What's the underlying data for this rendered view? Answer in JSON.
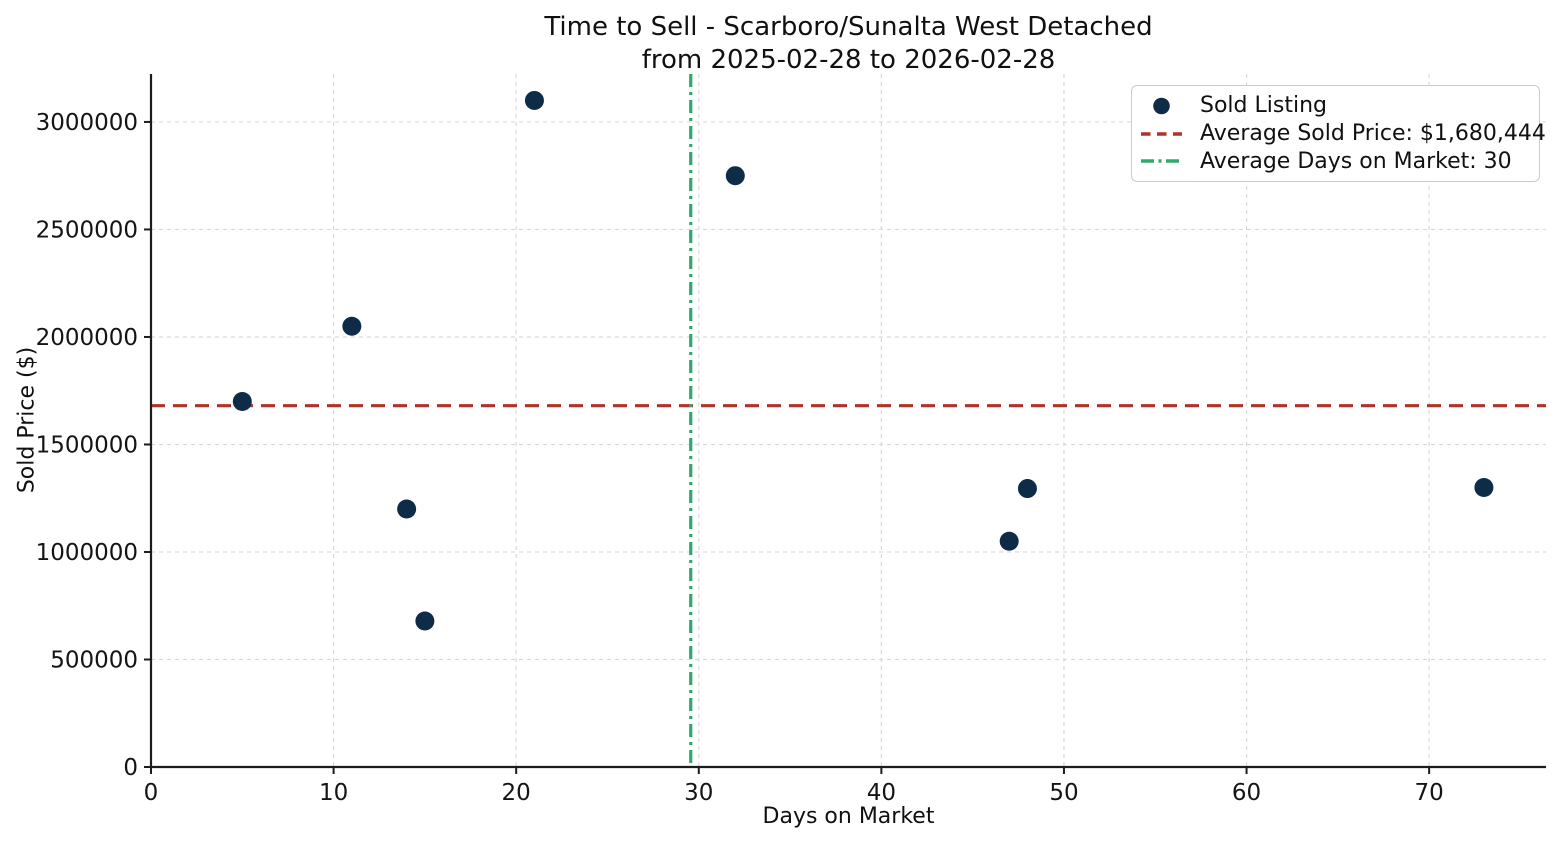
{
  "chart_data": {
    "type": "scatter",
    "title": "Time to Sell - Scarboro/Sunalta West Detached",
    "subtitle": "from 2025-02-28 to 2026-02-28",
    "xlabel": "Days on Market",
    "ylabel": "Sold Price ($)",
    "series": [
      {
        "name": "Sold Listing",
        "points": [
          {
            "days_on_market": 5,
            "sold_price": 1700000
          },
          {
            "days_on_market": 11,
            "sold_price": 2050000
          },
          {
            "days_on_market": 14,
            "sold_price": 1200000
          },
          {
            "days_on_market": 15,
            "sold_price": 679000
          },
          {
            "days_on_market": 21,
            "sold_price": 3100000
          },
          {
            "days_on_market": 32,
            "sold_price": 2750000
          },
          {
            "days_on_market": 47,
            "sold_price": 1050000
          },
          {
            "days_on_market": 48,
            "sold_price": 1295000
          },
          {
            "days_on_market": 73,
            "sold_price": 1300000
          }
        ]
      }
    ],
    "average_sold_price": 1680444,
    "average_days_on_market": 30,
    "average_days_line_x": 29.56,
    "xlim": [
      0,
      76.4
    ],
    "ylim": [
      0,
      3223000
    ],
    "xticks": [
      0,
      10,
      20,
      30,
      40,
      50,
      60,
      70
    ],
    "yticks": [
      0,
      500000,
      1000000,
      1500000,
      2000000,
      2500000,
      3000000
    ],
    "grid": true,
    "legend_position": "upper right",
    "legend": [
      {
        "label": "Sold Listing",
        "marker": "dot",
        "color": "#0e2b48"
      },
      {
        "label": "Average Sold Price: $1,680,444",
        "marker": "dashed",
        "color": "#b03228"
      },
      {
        "label": "Average Days on Market: 30",
        "marker": "dashdot",
        "color": "#2eab6c"
      }
    ],
    "colors": {
      "point": "#0e2b48",
      "avg_price_line": "#b03228",
      "avg_days_line": "#2eab6c",
      "grid": "#d9d9d9",
      "axis": "#1c1c1c",
      "text": "#141414"
    }
  }
}
